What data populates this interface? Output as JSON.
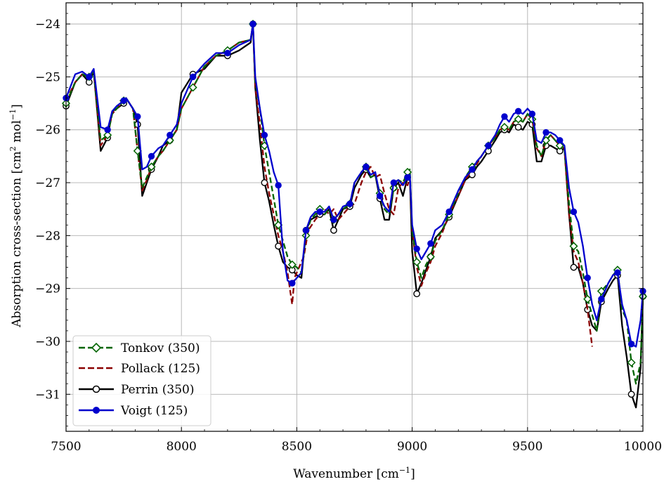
{
  "chart_data": {
    "type": "line",
    "title": "",
    "xlabel": "Wavenumber [cm",
    "xlabel_sup": "−1",
    "xlabel_end": "]",
    "ylabel": "Absorption cross-section [cm",
    "ylabel_sup": "2",
    "ylabel_mid": " mol",
    "ylabel_sup2": "−1",
    "ylabel_end": "]",
    "xlim": [
      7500,
      10000
    ],
    "ylim": [
      -31.7,
      -23.6
    ],
    "xticks": [
      7500,
      8000,
      8500,
      9000,
      9500,
      10000
    ],
    "xtick_labels": [
      "7500",
      "8000",
      "8500",
      "9000",
      "9500",
      "10000"
    ],
    "yticks": [
      -31,
      -30,
      -29,
      -28,
      -27,
      -26,
      -25,
      -24
    ],
    "ytick_labels": [
      "−31",
      "−30",
      "−29",
      "−28",
      "−27",
      "−26",
      "−25",
      "−24"
    ],
    "grid": true,
    "legend_position": "bottom-left",
    "colors": {
      "tonkov": "#006400",
      "pollack": "#8b0000",
      "perrin": "#000000",
      "voigt": "#0000cd"
    },
    "series": [
      {
        "name": "Tonkov (350)",
        "style": "dashed-diamond",
        "x": [
          7500,
          7540,
          7570,
          7600,
          7620,
          7650,
          7680,
          7700,
          7720,
          7750,
          7760,
          7790,
          7810,
          7830,
          7850,
          7870,
          7900,
          7920,
          7950,
          7980,
          8000,
          8050,
          8100,
          8150,
          8200,
          8250,
          8300,
          8310,
          8320,
          8340,
          8360,
          8380,
          8400,
          8420,
          8440,
          8460,
          8480,
          8500,
          8520,
          8540,
          8560,
          8580,
          8600,
          8620,
          8640,
          8660,
          8680,
          8700,
          8730,
          8750,
          8780,
          8800,
          8820,
          8840,
          8860,
          8880,
          8900,
          8920,
          8940,
          8960,
          8980,
          8990,
          9000,
          9020,
          9040,
          9060,
          9080,
          9100,
          9130,
          9160,
          9200,
          9230,
          9260,
          9280,
          9300,
          9330,
          9360,
          9380,
          9400,
          9420,
          9440,
          9460,
          9480,
          9500,
          9520,
          9540,
          9560,
          9580,
          9600,
          9620,
          9640,
          9660,
          9680,
          9700,
          9720,
          9740,
          9760,
          9780,
          9800,
          9820,
          9850,
          9870,
          9890,
          9910,
          9930,
          9950,
          9970,
          9990,
          10000
        ],
        "y": [
          -25.5,
          -25.1,
          -24.95,
          -25.0,
          -24.9,
          -26.2,
          -26.1,
          -25.7,
          -25.6,
          -25.45,
          -25.4,
          -25.6,
          -26.4,
          -27.1,
          -26.9,
          -26.7,
          -26.5,
          -26.4,
          -26.2,
          -26.0,
          -25.6,
          -25.2,
          -24.8,
          -24.6,
          -24.5,
          -24.35,
          -24.3,
          -24.0,
          -25.1,
          -25.6,
          -26.3,
          -26.8,
          -27.3,
          -27.8,
          -28.1,
          -28.4,
          -28.55,
          -28.6,
          -28.7,
          -28.0,
          -27.7,
          -27.6,
          -27.5,
          -27.6,
          -27.5,
          -27.7,
          -27.6,
          -27.5,
          -27.4,
          -27.0,
          -26.8,
          -26.7,
          -26.9,
          -26.85,
          -27.2,
          -27.5,
          -27.6,
          -27.1,
          -26.95,
          -27.0,
          -26.8,
          -26.75,
          -27.9,
          -28.5,
          -28.8,
          -28.55,
          -28.4,
          -28.1,
          -27.9,
          -27.6,
          -27.2,
          -26.9,
          -26.7,
          -26.6,
          -26.5,
          -26.3,
          -26.15,
          -26.0,
          -25.95,
          -26.0,
          -25.85,
          -25.8,
          -25.85,
          -25.7,
          -25.8,
          -26.3,
          -26.5,
          -26.2,
          -26.1,
          -26.2,
          -26.3,
          -26.35,
          -27.4,
          -28.2,
          -28.3,
          -28.7,
          -29.2,
          -29.5,
          -29.8,
          -29.05,
          -28.9,
          -28.75,
          -28.65,
          -29.4,
          -29.6,
          -30.4,
          -30.8,
          -30.4,
          -29.15
        ]
      },
      {
        "name": "Pollack (125)",
        "style": "dashed",
        "x": [
          7500,
          7540,
          7570,
          7600,
          7620,
          7650,
          7680,
          7700,
          7720,
          7750,
          7760,
          7790,
          7810,
          7830,
          7850,
          7870,
          7900,
          7920,
          7950,
          7980,
          8000,
          8050,
          8100,
          8150,
          8200,
          8250,
          8300,
          8310,
          8320,
          8340,
          8360,
          8380,
          8400,
          8420,
          8440,
          8460,
          8470,
          8480,
          8490,
          8510,
          8530,
          8550,
          8580,
          8600,
          8620,
          8640,
          8660,
          8680,
          8700,
          8730,
          8750,
          8780,
          8800,
          8820,
          8840,
          8860,
          8880,
          8900,
          8920,
          8940,
          8960,
          8980,
          8990,
          9000,
          9020,
          9040,
          9060,
          9080,
          9100,
          9130,
          9160,
          9200,
          9230,
          9260,
          9280,
          9300,
          9330,
          9360,
          9380,
          9400,
          9420,
          9440,
          9460,
          9480,
          9500,
          9520,
          9540,
          9560,
          9580,
          9600,
          9620,
          9640,
          9660,
          9680,
          9700,
          9720,
          9740,
          9760,
          9780
        ],
        "y": [
          -25.45,
          -25.1,
          -24.95,
          -25.0,
          -24.9,
          -26.3,
          -26.1,
          -25.7,
          -25.6,
          -25.45,
          -25.4,
          -25.6,
          -26.4,
          -27.15,
          -26.95,
          -26.7,
          -26.5,
          -26.4,
          -26.2,
          -26.0,
          -25.6,
          -25.2,
          -24.8,
          -24.6,
          -24.5,
          -24.35,
          -24.3,
          -24.0,
          -25.2,
          -25.9,
          -26.7,
          -27.2,
          -27.6,
          -28.0,
          -28.3,
          -28.7,
          -29.0,
          -29.3,
          -28.8,
          -28.6,
          -28.4,
          -27.9,
          -27.7,
          -27.6,
          -27.5,
          -27.6,
          -27.5,
          -27.7,
          -27.6,
          -27.45,
          -27.4,
          -27.0,
          -26.8,
          -26.7,
          -26.9,
          -26.85,
          -27.2,
          -27.5,
          -27.6,
          -27.1,
          -27.0,
          -27.05,
          -26.9,
          -27.9,
          -28.6,
          -28.95,
          -28.7,
          -28.5,
          -28.2,
          -27.95,
          -27.6,
          -27.25,
          -26.95,
          -26.75,
          -26.65,
          -26.5,
          -26.3,
          -26.15,
          -26.0,
          -25.95,
          -26.0,
          -25.85,
          -25.8,
          -25.85,
          -25.7,
          -25.8,
          -26.35,
          -26.5,
          -26.2,
          -26.1,
          -26.2,
          -26.3,
          -26.35,
          -27.6,
          -28.3,
          -28.5,
          -28.9,
          -29.4,
          -30.1
        ]
      },
      {
        "name": "Perrin (350)",
        "style": "solid-open-circle",
        "x": [
          7500,
          7540,
          7570,
          7600,
          7620,
          7650,
          7680,
          7700,
          7720,
          7750,
          7760,
          7790,
          7810,
          7830,
          7850,
          7870,
          7900,
          7920,
          7950,
          7980,
          8000,
          8050,
          8100,
          8150,
          8200,
          8250,
          8300,
          8310,
          8320,
          8340,
          8360,
          8380,
          8400,
          8420,
          8440,
          8460,
          8480,
          8500,
          8520,
          8540,
          8560,
          8580,
          8600,
          8620,
          8640,
          8660,
          8680,
          8700,
          8730,
          8750,
          8780,
          8800,
          8820,
          8840,
          8860,
          8880,
          8900,
          8920,
          8940,
          8960,
          8980,
          8990,
          9000,
          9020,
          9040,
          9060,
          9080,
          9100,
          9130,
          9160,
          9200,
          9230,
          9260,
          9280,
          9300,
          9330,
          9360,
          9380,
          9400,
          9420,
          9440,
          9460,
          9480,
          9500,
          9520,
          9540,
          9560,
          9580,
          9600,
          9620,
          9640,
          9660,
          9680,
          9700,
          9720,
          9740,
          9760,
          9780,
          9800,
          9820,
          9850,
          9870,
          9890,
          9910,
          9930,
          9950,
          9970,
          9990,
          10000
        ],
        "y": [
          -25.55,
          -25.1,
          -24.95,
          -25.1,
          -24.9,
          -26.4,
          -26.15,
          -25.65,
          -25.6,
          -25.5,
          -25.4,
          -25.6,
          -25.9,
          -27.25,
          -27.0,
          -26.75,
          -26.5,
          -26.3,
          -26.2,
          -26.0,
          -25.3,
          -24.95,
          -24.85,
          -24.6,
          -24.6,
          -24.5,
          -24.35,
          -24.0,
          -25.2,
          -26.2,
          -27.0,
          -27.35,
          -27.8,
          -28.2,
          -28.5,
          -28.6,
          -28.65,
          -28.75,
          -28.8,
          -27.9,
          -27.7,
          -27.65,
          -27.6,
          -27.6,
          -27.5,
          -27.9,
          -27.7,
          -27.5,
          -27.45,
          -27.1,
          -26.85,
          -26.75,
          -26.9,
          -26.85,
          -27.3,
          -27.7,
          -27.7,
          -27.1,
          -27.0,
          -27.25,
          -26.9,
          -26.9,
          -28.3,
          -29.1,
          -28.9,
          -28.65,
          -28.4,
          -28.05,
          -27.9,
          -27.65,
          -27.25,
          -26.95,
          -26.85,
          -26.7,
          -26.6,
          -26.4,
          -26.2,
          -26.05,
          -26.0,
          -26.05,
          -25.9,
          -25.95,
          -26.0,
          -25.85,
          -25.9,
          -26.6,
          -26.6,
          -26.3,
          -26.3,
          -26.35,
          -26.4,
          -26.35,
          -27.6,
          -28.6,
          -28.6,
          -28.9,
          -29.4,
          -29.7,
          -29.8,
          -29.25,
          -29.0,
          -28.85,
          -28.75,
          -29.7,
          -30.3,
          -31.0,
          -31.25,
          -30.5,
          -29.15
        ]
      },
      {
        "name": "Voigt (125)",
        "style": "solid-filled-circle",
        "x": [
          7500,
          7540,
          7570,
          7600,
          7620,
          7650,
          7680,
          7700,
          7720,
          7750,
          7760,
          7790,
          7810,
          7830,
          7850,
          7870,
          7900,
          7920,
          7950,
          7980,
          8000,
          8050,
          8100,
          8150,
          8200,
          8250,
          8300,
          8310,
          8320,
          8340,
          8360,
          8380,
          8400,
          8420,
          8440,
          8460,
          8480,
          8500,
          8520,
          8540,
          8560,
          8580,
          8600,
          8620,
          8640,
          8660,
          8680,
          8700,
          8730,
          8750,
          8780,
          8800,
          8820,
          8840,
          8860,
          8880,
          8900,
          8920,
          8940,
          8960,
          8980,
          8990,
          9000,
          9020,
          9040,
          9060,
          9080,
          9100,
          9130,
          9160,
          9200,
          9230,
          9260,
          9280,
          9300,
          9330,
          9360,
          9380,
          9400,
          9420,
          9440,
          9460,
          9480,
          9500,
          9520,
          9540,
          9560,
          9580,
          9600,
          9620,
          9640,
          9660,
          9680,
          9700,
          9720,
          9740,
          9760,
          9780,
          9800,
          9820,
          9850,
          9870,
          9890,
          9910,
          9930,
          9950,
          9970,
          9990,
          10000
        ],
        "y": [
          -25.4,
          -24.95,
          -24.9,
          -25.0,
          -24.85,
          -25.95,
          -26.0,
          -25.65,
          -25.55,
          -25.45,
          -25.4,
          -25.6,
          -25.75,
          -26.75,
          -26.7,
          -26.5,
          -26.35,
          -26.3,
          -26.1,
          -25.9,
          -25.5,
          -25.0,
          -24.75,
          -24.55,
          -24.55,
          -24.4,
          -24.3,
          -24.0,
          -25.0,
          -25.6,
          -26.1,
          -26.4,
          -26.8,
          -27.05,
          -28.3,
          -28.85,
          -28.9,
          -28.8,
          -28.7,
          -27.9,
          -27.65,
          -27.55,
          -27.55,
          -27.55,
          -27.45,
          -27.7,
          -27.6,
          -27.45,
          -27.4,
          -27.0,
          -26.8,
          -26.7,
          -26.85,
          -26.8,
          -27.25,
          -27.45,
          -27.55,
          -27.0,
          -26.95,
          -27.05,
          -26.9,
          -26.85,
          -27.8,
          -28.25,
          -28.45,
          -28.3,
          -28.15,
          -27.9,
          -27.8,
          -27.55,
          -27.15,
          -26.9,
          -26.75,
          -26.6,
          -26.5,
          -26.3,
          -26.1,
          -25.9,
          -25.75,
          -25.85,
          -25.7,
          -25.65,
          -25.7,
          -25.6,
          -25.7,
          -26.2,
          -26.25,
          -26.05,
          -26.05,
          -26.1,
          -26.2,
          -26.3,
          -27.1,
          -27.55,
          -27.75,
          -28.2,
          -28.8,
          -29.3,
          -29.6,
          -29.2,
          -28.9,
          -28.75,
          -28.7,
          -29.3,
          -29.6,
          -30.05,
          -30.1,
          -29.6,
          -29.05
        ]
      }
    ]
  }
}
